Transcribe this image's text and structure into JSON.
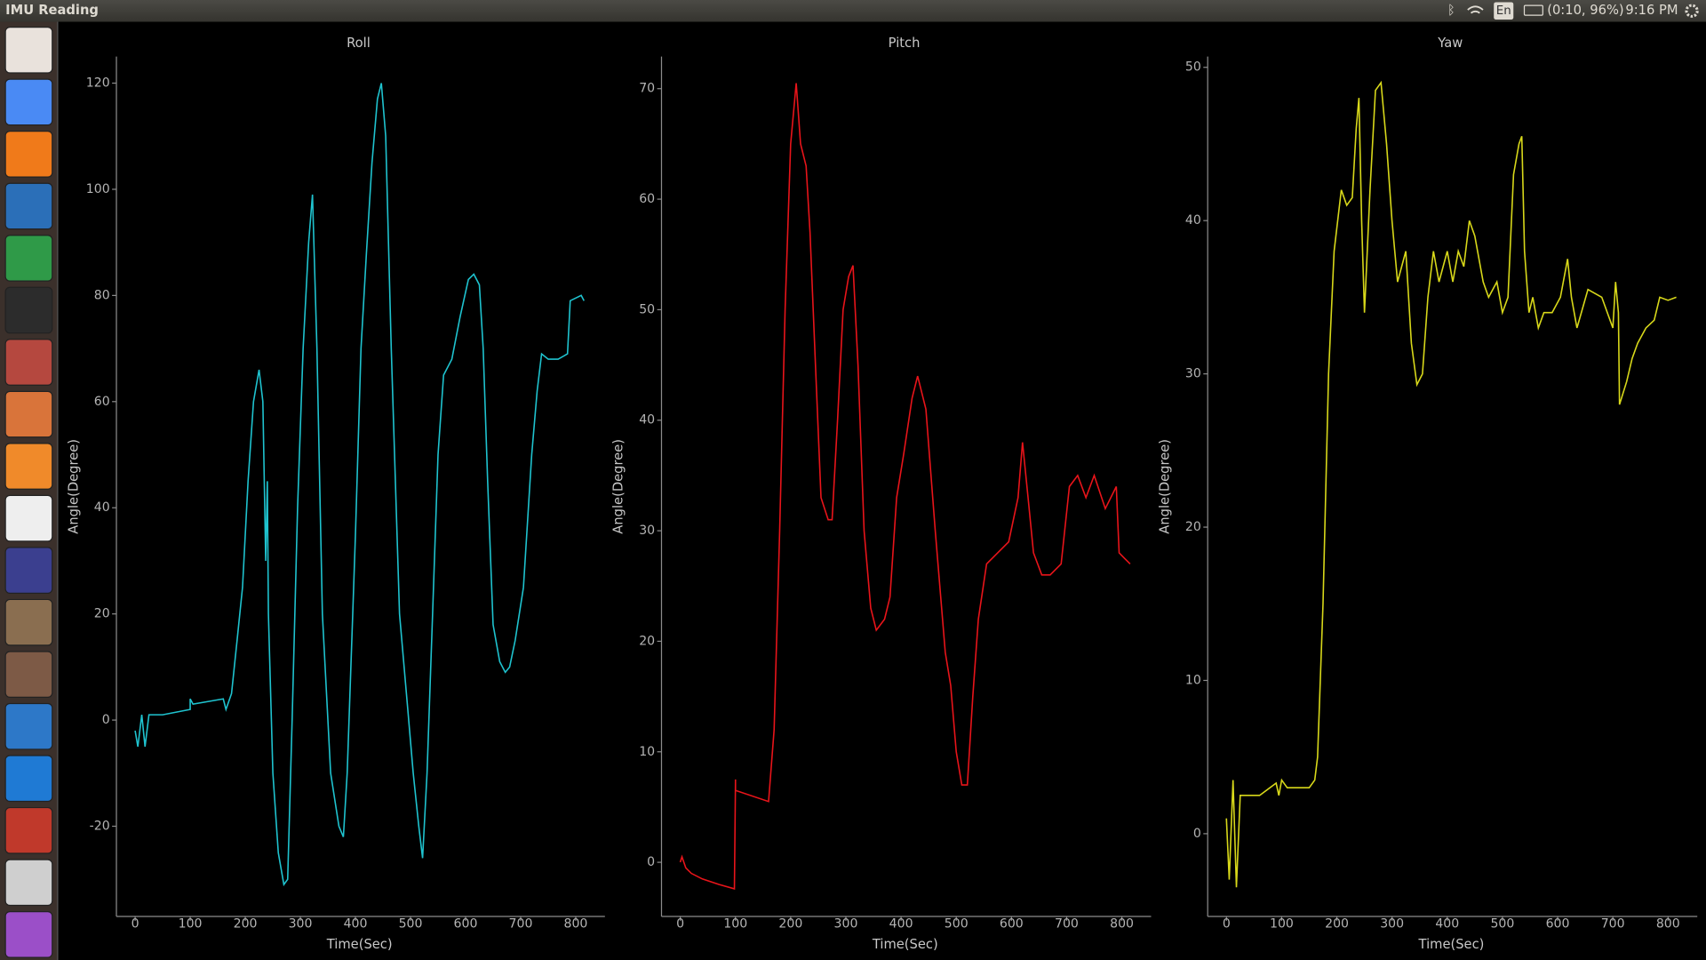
{
  "top_bar": {
    "title": "IMU Reading",
    "language": "En",
    "battery": "(0:10, 96%)",
    "time": "9:16 PM"
  },
  "chart_data": [
    {
      "type": "line",
      "title": "Roll",
      "x_label": "Time(Sec)",
      "y_label": "Angle(Degree)",
      "color": "#1fc3cf",
      "xlim": [
        -34,
        853
      ],
      "ylim": [
        -37,
        125
      ],
      "xticks": [
        0,
        100,
        200,
        300,
        400,
        500,
        600,
        700,
        800
      ],
      "yticks": [
        -20,
        0,
        20,
        40,
        60,
        80,
        100,
        120
      ],
      "x": [
        0,
        5,
        12,
        18,
        25,
        50,
        100,
        100,
        105,
        160,
        165,
        175,
        185,
        195,
        205,
        215,
        225,
        232,
        237,
        240,
        242,
        250,
        260,
        270,
        277,
        285,
        295,
        305,
        315,
        322,
        330,
        340,
        355,
        370,
        378,
        385,
        395,
        400,
        410,
        420,
        430,
        440,
        447,
        455,
        465,
        480,
        495,
        505,
        515,
        522,
        530,
        540,
        550,
        560,
        575,
        590,
        605,
        615,
        625,
        632,
        640,
        650,
        662,
        672,
        680,
        690,
        705,
        720,
        730,
        738,
        750,
        768,
        785,
        790,
        810,
        815
      ],
      "values": [
        -2,
        -5,
        1,
        -5,
        1,
        1,
        2,
        4,
        3,
        4,
        2,
        5,
        15,
        25,
        45,
        60,
        66,
        60,
        30,
        45,
        20,
        -10,
        -25,
        -31,
        -30,
        0,
        40,
        70,
        90,
        99,
        70,
        20,
        -10,
        -20,
        -22,
        -10,
        20,
        35,
        70,
        88,
        105,
        117,
        120,
        110,
        70,
        20,
        2,
        -10,
        -20,
        -26,
        -10,
        20,
        50,
        65,
        68,
        76,
        83,
        84,
        82,
        70,
        45,
        18,
        11,
        9,
        10,
        15,
        25,
        50,
        62,
        69,
        68,
        68,
        69,
        79,
        80,
        79
      ]
    },
    {
      "type": "line",
      "title": "Pitch",
      "x_label": "Time(Sec)",
      "y_label": "Angle(Degree)",
      "color": "#e8141a",
      "xlim": [
        -34,
        853
      ],
      "ylim": [
        -4.9,
        72.9
      ],
      "xticks": [
        0,
        100,
        200,
        300,
        400,
        500,
        600,
        700,
        800
      ],
      "yticks": [
        0,
        10,
        20,
        30,
        40,
        50,
        60,
        70
      ],
      "x": [
        0,
        3,
        10,
        20,
        40,
        70,
        98,
        100,
        100,
        160,
        170,
        180,
        190,
        200,
        210,
        218,
        228,
        235,
        245,
        255,
        268,
        275,
        285,
        295,
        305,
        313,
        322,
        333,
        345,
        355,
        370,
        380,
        392,
        405,
        420,
        430,
        445,
        462,
        480,
        490,
        500,
        510,
        520,
        530,
        540,
        555,
        575,
        595,
        612,
        620,
        630,
        640,
        655,
        670,
        690,
        705,
        720,
        735,
        750,
        770,
        790,
        795,
        805,
        815
      ],
      "values": [
        0,
        0.5,
        -0.5,
        -1,
        -1.5,
        -2,
        -2.4,
        7.5,
        6.5,
        5.5,
        12,
        30,
        50,
        65,
        70.5,
        65,
        63,
        57,
        45,
        33,
        31,
        31,
        40,
        50,
        53,
        54,
        45,
        30,
        23,
        21,
        22,
        24,
        33,
        37,
        42,
        44,
        41,
        30,
        19,
        16,
        10,
        7,
        7,
        15,
        22,
        27,
        28,
        29,
        33,
        38,
        33,
        28,
        26,
        26,
        27,
        34,
        35,
        33,
        35,
        32,
        34,
        28,
        27.5,
        27
      ]
    },
    {
      "type": "line",
      "title": "Yaw",
      "x_label": "Time(Sec)",
      "y_label": "Angle(Degree)",
      "color": "#d8d81a",
      "xlim": [
        -34,
        853
      ],
      "ylim": [
        -5.4,
        50.7
      ],
      "xticks": [
        0,
        100,
        200,
        300,
        400,
        500,
        600,
        700,
        800
      ],
      "yticks": [
        0,
        10,
        20,
        30,
        40,
        50
      ],
      "x": [
        0,
        5,
        12,
        18,
        25,
        60,
        90,
        95,
        100,
        110,
        150,
        160,
        165,
        175,
        185,
        195,
        208,
        218,
        228,
        235,
        240,
        245,
        250,
        260,
        270,
        280,
        290,
        300,
        310,
        325,
        335,
        345,
        355,
        365,
        375,
        385,
        400,
        410,
        420,
        430,
        440,
        450,
        465,
        475,
        490,
        500,
        510,
        520,
        530,
        535,
        540,
        548,
        555,
        565,
        575,
        590,
        605,
        618,
        625,
        635,
        655,
        680,
        700,
        705,
        710,
        712,
        725,
        735,
        745,
        760,
        775,
        785,
        800,
        815
      ],
      "values": [
        1,
        -3,
        3.5,
        -3.5,
        2.5,
        2.5,
        3.3,
        2.5,
        3.5,
        3,
        3,
        3.5,
        5,
        15,
        30,
        38,
        42,
        41,
        41.5,
        46,
        48,
        40,
        34,
        42,
        48.5,
        49,
        45,
        40,
        36,
        38,
        32,
        29.3,
        30,
        35,
        38,
        36,
        38,
        36,
        38,
        37,
        40,
        39,
        36,
        35,
        36,
        34,
        35,
        43,
        45,
        45.5,
        38,
        34,
        35,
        33,
        34,
        34,
        35,
        37.5,
        35,
        33,
        35.5,
        35,
        33,
        36,
        34,
        28,
        29.5,
        31,
        32,
        33,
        33.5,
        35,
        34.8,
        35
      ]
    }
  ]
}
